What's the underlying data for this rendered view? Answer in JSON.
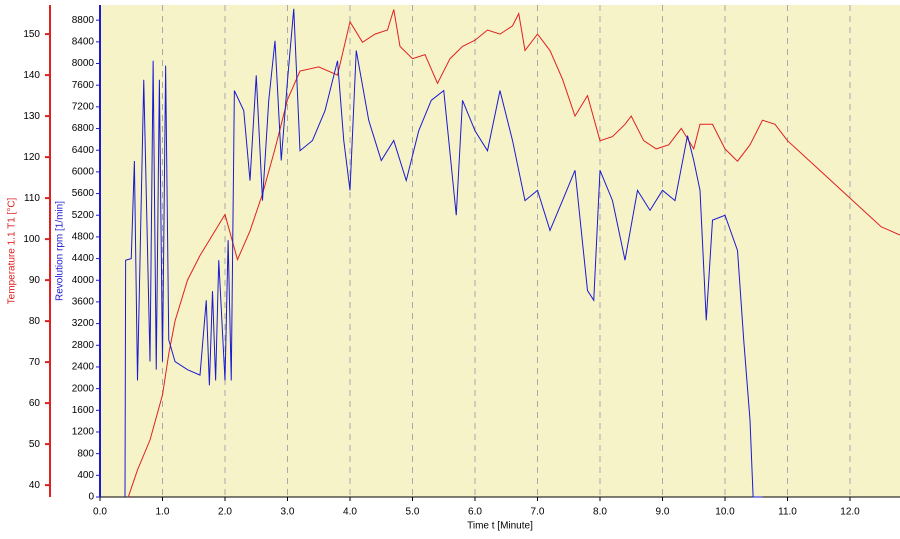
{
  "chart_data": {
    "type": "line",
    "x_label": "Time  t  [Minute]",
    "y_label": "Revolution  rpm  [1/min]",
    "y2_label": "Temperature 1.1  T1  [°C]",
    "background": "#f7f3c9",
    "grid": true,
    "xlim": [
      0,
      12.8
    ],
    "xticks": [
      {
        "value": 0,
        "label": "0.0"
      },
      {
        "value": 1,
        "label": "1.0"
      },
      {
        "value": 2,
        "label": "2.0"
      },
      {
        "value": 3,
        "label": "3.0"
      },
      {
        "value": 4,
        "label": "4.0"
      },
      {
        "value": 5,
        "label": "5.0"
      },
      {
        "value": 6,
        "label": "6.0"
      },
      {
        "value": 7,
        "label": "7.0"
      },
      {
        "value": 8,
        "label": "8.0"
      },
      {
        "value": 9,
        "label": "9.0"
      },
      {
        "value": 10,
        "label": "10.0"
      },
      {
        "value": 11,
        "label": "11.0"
      },
      {
        "value": 12,
        "label": "12.0"
      }
    ],
    "ylim": [
      0,
      9080
    ],
    "yticks": [
      0,
      400,
      800,
      1200,
      1600,
      2000,
      2400,
      2800,
      3200,
      3600,
      4000,
      4400,
      4800,
      5200,
      5600,
      6000,
      6400,
      6800,
      7200,
      7600,
      8000,
      8400,
      8800
    ],
    "y2lim": [
      37.1,
      157.1
    ],
    "y2ticks": [
      40,
      50,
      60,
      70,
      80,
      90,
      100,
      110,
      120,
      130,
      140,
      150
    ],
    "series": [
      {
        "name": "Temperature 1.1  T1",
        "color": "#e02020",
        "axis": "y2",
        "x": [
          0.45,
          0.6,
          0.8,
          1.0,
          1.1,
          1.2,
          1.4,
          1.6,
          1.8,
          2.0,
          2.2,
          2.4,
          2.6,
          2.8,
          3.0,
          3.2,
          3.5,
          3.8,
          4.0,
          4.2,
          4.4,
          4.6,
          4.7,
          4.8,
          5.0,
          5.2,
          5.4,
          5.6,
          5.8,
          6.0,
          6.2,
          6.4,
          6.6,
          6.7,
          6.8,
          7.0,
          7.2,
          7.4,
          7.6,
          7.8,
          8.0,
          8.2,
          8.4,
          8.5,
          8.7,
          8.9,
          9.1,
          9.3,
          9.5,
          9.6,
          9.8,
          10.0,
          10.2,
          10.4,
          10.6,
          10.8,
          11.0,
          11.5,
          12.0,
          12.5,
          12.8
        ],
        "values": [
          37,
          43.7,
          51,
          62,
          72,
          80,
          90,
          96,
          101,
          106,
          95,
          102,
          111,
          122,
          134,
          141,
          142,
          140,
          153,
          148,
          150,
          151,
          156,
          147,
          144,
          145,
          138,
          144,
          147,
          148.5,
          151,
          150,
          152,
          155,
          146,
          150,
          146,
          139,
          130,
          135,
          124,
          125,
          128,
          130,
          124,
          122,
          123,
          127,
          122,
          128,
          128,
          122,
          119,
          123,
          129,
          128,
          124,
          117,
          110,
          103,
          101
        ]
      },
      {
        "name": "Revolution  rpm",
        "color": "#1a1ad0",
        "axis": "y",
        "x": [
          0.4,
          0.41,
          0.5,
          0.55,
          0.6,
          0.7,
          0.8,
          0.85,
          0.9,
          0.95,
          1.0,
          1.05,
          1.1,
          1.2,
          1.4,
          1.6,
          1.7,
          1.75,
          1.8,
          1.85,
          1.9,
          2.0,
          2.05,
          2.1,
          2.15,
          2.3,
          2.4,
          2.5,
          2.6,
          2.7,
          2.8,
          2.9,
          3.0,
          3.1,
          3.2,
          3.4,
          3.6,
          3.8,
          3.9,
          4.0,
          4.1,
          4.3,
          4.5,
          4.7,
          4.9,
          5.1,
          5.3,
          5.5,
          5.7,
          5.8,
          6.0,
          6.2,
          6.4,
          6.6,
          6.8,
          7.0,
          7.2,
          7.4,
          7.6,
          7.8,
          7.9,
          8.0,
          8.2,
          8.4,
          8.6,
          8.8,
          9.0,
          9.2,
          9.4,
          9.5,
          9.6,
          9.7,
          9.8,
          10.0,
          10.2,
          10.3,
          10.4,
          10.45,
          10.6
        ],
        "values": [
          0,
          4370,
          4400,
          6200,
          2150,
          7700,
          2500,
          8050,
          2350,
          7700,
          2500,
          7960,
          2900,
          2500,
          2350,
          2250,
          3630,
          2060,
          3800,
          2150,
          4370,
          2150,
          4740,
          2150,
          7500,
          7130,
          5840,
          7780,
          5470,
          7320,
          8420,
          6210,
          7690,
          9010,
          6390,
          6580,
          7130,
          8050,
          6580,
          5660,
          8240,
          6950,
          6210,
          6580,
          5840,
          6760,
          7320,
          7500,
          5200,
          7320,
          6760,
          6390,
          7500,
          6580,
          5470,
          5660,
          4920,
          5470,
          6030,
          3810,
          3630,
          6030,
          5470,
          4370,
          5660,
          5290,
          5660,
          5470,
          6670,
          6210,
          5660,
          3260,
          5110,
          5200,
          4550,
          2890,
          1420,
          0,
          0
        ]
      }
    ]
  }
}
